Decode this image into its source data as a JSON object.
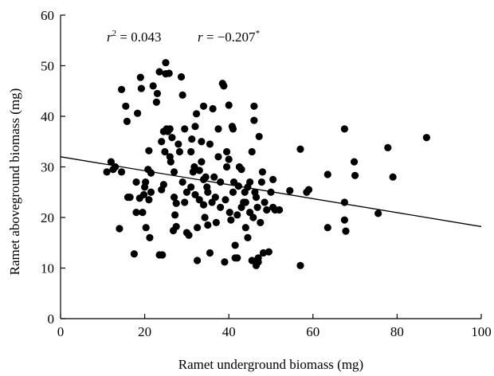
{
  "chart_data": {
    "type": "scatter",
    "title": "",
    "xlabel": "Ramet underground biomass (mg)",
    "ylabel": "Ramet aboveground biomass (mg)",
    "xlim": [
      0,
      100
    ],
    "ylim": [
      0,
      60
    ],
    "xticks": [
      "0",
      "20",
      "40",
      "60",
      "80",
      "100"
    ],
    "yticks": [
      "0",
      "10",
      "20",
      "30",
      "40",
      "50",
      "60"
    ],
    "grid": false,
    "legend": "none",
    "point_color": "#000000",
    "annotation": {
      "r2_symbol": "r",
      "r2_exp": "2",
      "r2_value": " = 0.043",
      "r_symbol": "r",
      "r_value": " = −0.207",
      "r_sig": "*"
    },
    "trendline": {
      "x": [
        0,
        100
      ],
      "y": [
        32.0,
        18.2
      ]
    },
    "points": [
      [
        11,
        29
      ],
      [
        12,
        31
      ],
      [
        12.5,
        29.5
      ],
      [
        13,
        30
      ],
      [
        14,
        17.8
      ],
      [
        14.5,
        29
      ],
      [
        14.5,
        45.3
      ],
      [
        15.5,
        42
      ],
      [
        15.8,
        39
      ],
      [
        16,
        24
      ],
      [
        16.5,
        24
      ],
      [
        17.5,
        12.8
      ],
      [
        18,
        21
      ],
      [
        18,
        27
      ],
      [
        18.3,
        40.6
      ],
      [
        18.8,
        23.8
      ],
      [
        19,
        47.7
      ],
      [
        19.2,
        45.5
      ],
      [
        19.5,
        21
      ],
      [
        19.8,
        24.5
      ],
      [
        20,
        26
      ],
      [
        20.2,
        27
      ],
      [
        20.3,
        18
      ],
      [
        20.8,
        29.5
      ],
      [
        21,
        33.2
      ],
      [
        21,
        23.5
      ],
      [
        21.2,
        16
      ],
      [
        21.5,
        25
      ],
      [
        21.5,
        28.8
      ],
      [
        22,
        46
      ],
      [
        22.8,
        42.8
      ],
      [
        23,
        44.5
      ],
      [
        23.5,
        48.8
      ],
      [
        23.5,
        12.6
      ],
      [
        24,
        25.5
      ],
      [
        24,
        35
      ],
      [
        24.2,
        12.6
      ],
      [
        24.5,
        26.5
      ],
      [
        24.5,
        37
      ],
      [
        24.8,
        33
      ],
      [
        25,
        50.6
      ],
      [
        25,
        48.4
      ],
      [
        25.2,
        37.5
      ],
      [
        25.5,
        37
      ],
      [
        25.8,
        48.5
      ],
      [
        26,
        32
      ],
      [
        26,
        37.5
      ],
      [
        26.2,
        31
      ],
      [
        26.5,
        35.8
      ],
      [
        26.8,
        17.4
      ],
      [
        27,
        29
      ],
      [
        27,
        24
      ],
      [
        27.2,
        20.5
      ],
      [
        27.5,
        18.2
      ],
      [
        27.5,
        22.8
      ],
      [
        28,
        34.5
      ],
      [
        28.3,
        33
      ],
      [
        28.7,
        47.8
      ],
      [
        29,
        44.2
      ],
      [
        29,
        27
      ],
      [
        29.5,
        23
      ],
      [
        29.5,
        37.5
      ],
      [
        30,
        17
      ],
      [
        30,
        25
      ],
      [
        30.5,
        16.5
      ],
      [
        31,
        26
      ],
      [
        31,
        33
      ],
      [
        31.2,
        35.5
      ],
      [
        31.5,
        29
      ],
      [
        31.8,
        30
      ],
      [
        32,
        24.5
      ],
      [
        32,
        38
      ],
      [
        32.3,
        40.5
      ],
      [
        32.5,
        11.5
      ],
      [
        32.5,
        18
      ],
      [
        33,
        23.5
      ],
      [
        33,
        29.3
      ],
      [
        33.5,
        31
      ],
      [
        33.5,
        35
      ],
      [
        34,
        22.5
      ],
      [
        34,
        27.5
      ],
      [
        34,
        42
      ],
      [
        34.3,
        20
      ],
      [
        34.5,
        28
      ],
      [
        34.8,
        26
      ],
      [
        35,
        25
      ],
      [
        35,
        18.5
      ],
      [
        35.5,
        13
      ],
      [
        35.5,
        34.5
      ],
      [
        36,
        23
      ],
      [
        36.2,
        41.5
      ],
      [
        36.5,
        28
      ],
      [
        36.8,
        24
      ],
      [
        37,
        19
      ],
      [
        37.5,
        32
      ],
      [
        37.5,
        37.5
      ],
      [
        38,
        22
      ],
      [
        38,
        27
      ],
      [
        38.5,
        46.5
      ],
      [
        38.8,
        46
      ],
      [
        39,
        11.2
      ],
      [
        39.2,
        23.5
      ],
      [
        39.5,
        30
      ],
      [
        39.5,
        33
      ],
      [
        40,
        42.2
      ],
      [
        40,
        31.5
      ],
      [
        40.2,
        21
      ],
      [
        40.5,
        19.5
      ],
      [
        40.8,
        38
      ],
      [
        41,
        37.5
      ],
      [
        41,
        25
      ],
      [
        41.2,
        27
      ],
      [
        41.5,
        12
      ],
      [
        41.5,
        14.5
      ],
      [
        42,
        20.5
      ],
      [
        42,
        12
      ],
      [
        42.3,
        26.2
      ],
      [
        42.5,
        30
      ],
      [
        43,
        29.5
      ],
      [
        43,
        22
      ],
      [
        43.5,
        23
      ],
      [
        43.8,
        25
      ],
      [
        44,
        23
      ],
      [
        44,
        18
      ],
      [
        44.5,
        16
      ],
      [
        44.5,
        26
      ],
      [
        45,
        21
      ],
      [
        45,
        27
      ],
      [
        45.5,
        11.5
      ],
      [
        45.5,
        33
      ],
      [
        45.8,
        20
      ],
      [
        46,
        39.2
      ],
      [
        46,
        42
      ],
      [
        46.2,
        25
      ],
      [
        46.5,
        24
      ],
      [
        46.5,
        10.5
      ],
      [
        46.8,
        22
      ],
      [
        47,
        12
      ],
      [
        47,
        11.2
      ],
      [
        47.2,
        36
      ],
      [
        47.5,
        19
      ],
      [
        47.8,
        27
      ],
      [
        48,
        29
      ],
      [
        48.2,
        13
      ],
      [
        48.5,
        23
      ],
      [
        49,
        21.5
      ],
      [
        49.5,
        13.2
      ],
      [
        50,
        25
      ],
      [
        50.5,
        27.5
      ],
      [
        50.5,
        22
      ],
      [
        51,
        21.5
      ],
      [
        52,
        21.5
      ],
      [
        54.5,
        25.3
      ],
      [
        57,
        33.5
      ],
      [
        57,
        10.5
      ],
      [
        58.5,
        25
      ],
      [
        59,
        25.5
      ],
      [
        63.5,
        28.5
      ],
      [
        63.5,
        18
      ],
      [
        67.5,
        37.5
      ],
      [
        67.5,
        23
      ],
      [
        67.5,
        19.5
      ],
      [
        67.8,
        17.3
      ],
      [
        69.8,
        31
      ],
      [
        70,
        28.3
      ],
      [
        75.5,
        20.8
      ],
      [
        77.8,
        33.8
      ],
      [
        79,
        28
      ],
      [
        87,
        35.8
      ]
    ]
  }
}
